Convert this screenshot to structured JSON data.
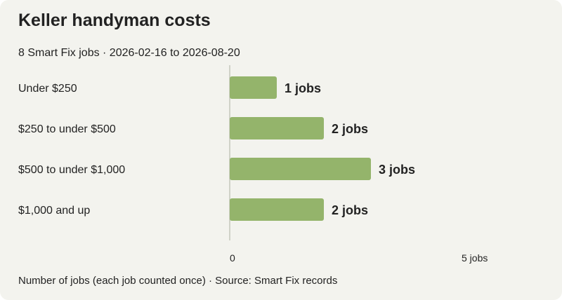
{
  "header": {
    "title": "Keller handyman costs",
    "subtitle": "8 Smart Fix jobs · 2026-02-16 to 2026-08-20"
  },
  "footer": {
    "note": "Number of jobs (each job counted once) · Source: Smart Fix records"
  },
  "colors": {
    "background": "#f3f3ee",
    "bar": "#94b46b",
    "axis": "#b9bdb0",
    "text": "#222222"
  },
  "chart_data": {
    "type": "bar",
    "orientation": "horizontal",
    "categories": [
      "Under $250",
      "$250 to under $500",
      "$500 to under $1,000",
      "$1,000 and up"
    ],
    "values": [
      1,
      2,
      3,
      2
    ],
    "data_labels": [
      "1 jobs",
      "2 jobs",
      "3 jobs",
      "2 jobs"
    ],
    "xlim": [
      0,
      5
    ],
    "x_ticks": [
      0,
      5
    ],
    "x_tick_labels": [
      "0",
      "5 jobs"
    ],
    "grid": false,
    "legend": "none"
  }
}
